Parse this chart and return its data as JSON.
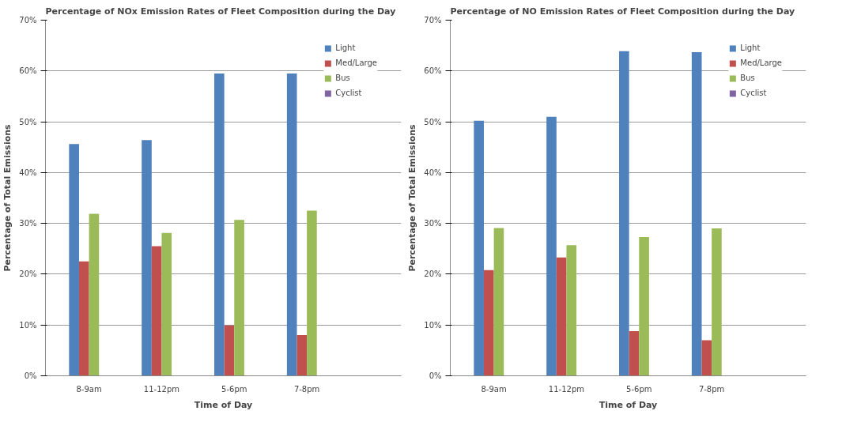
{
  "chart_data": [
    {
      "type": "bar",
      "title": "Percentage of NOx Emission Rates of Fleet Composition during  the Day",
      "xlabel": "Time of Day",
      "ylabel": "Percentage of Total Emissions",
      "categories": [
        "8-9am",
        "11-12pm",
        "5-6pm",
        "7-8pm"
      ],
      "series": [
        {
          "name": "Light",
          "color": "#4f81bd",
          "values": [
            45.6,
            46.4,
            59.5,
            59.5
          ]
        },
        {
          "name": "Med/Large",
          "color": "#c0504d",
          "values": [
            22.5,
            25.5,
            9.9,
            8.0
          ]
        },
        {
          "name": "Bus",
          "color": "#9bbb59",
          "values": [
            31.9,
            28.1,
            30.7,
            32.5
          ]
        },
        {
          "name": "Cyclist",
          "color": "#8064a2",
          "values": [
            0,
            0,
            0,
            0
          ]
        }
      ],
      "ylim": [
        0,
        70
      ],
      "yticks": [
        {
          "value": 0,
          "label": "0%"
        },
        {
          "value": 10,
          "label": "10%"
        },
        {
          "value": 20,
          "label": "20%"
        },
        {
          "value": 30,
          "label": "30%"
        },
        {
          "value": 40,
          "label": "40%"
        },
        {
          "value": 50,
          "label": "50%"
        },
        {
          "value": 60,
          "label": "60%"
        },
        {
          "value": 70,
          "label": "70%"
        }
      ],
      "grid": "y",
      "legend": "right"
    },
    {
      "type": "bar",
      "title": "Percentage of NO Emission Rates of Fleet Composition during  the Day",
      "xlabel": "Time of Day",
      "ylabel": "Percentage of Total Emissions",
      "categories": [
        "8-9am",
        "11-12pm",
        "5-6pm",
        "7-8pm"
      ],
      "series": [
        {
          "name": "Light",
          "color": "#4f81bd",
          "values": [
            50.2,
            51.0,
            63.9,
            63.7
          ]
        },
        {
          "name": "Med/Large",
          "color": "#c0504d",
          "values": [
            20.8,
            23.3,
            8.8,
            7.0
          ]
        },
        {
          "name": "Bus",
          "color": "#9bbb59",
          "values": [
            29.1,
            25.7,
            27.3,
            29.0
          ]
        },
        {
          "name": "Cyclist",
          "color": "#8064a2",
          "values": [
            0,
            0,
            0,
            0
          ]
        }
      ],
      "ylim": [
        0,
        70
      ],
      "yticks": [
        {
          "value": 0,
          "label": "0%"
        },
        {
          "value": 10,
          "label": "10%"
        },
        {
          "value": 20,
          "label": "20%"
        },
        {
          "value": 30,
          "label": "30%"
        },
        {
          "value": 40,
          "label": "40%"
        },
        {
          "value": 50,
          "label": "50%"
        },
        {
          "value": 60,
          "label": "60%"
        },
        {
          "value": 70,
          "label": "70%"
        }
      ],
      "grid": "y",
      "legend": "right"
    }
  ]
}
